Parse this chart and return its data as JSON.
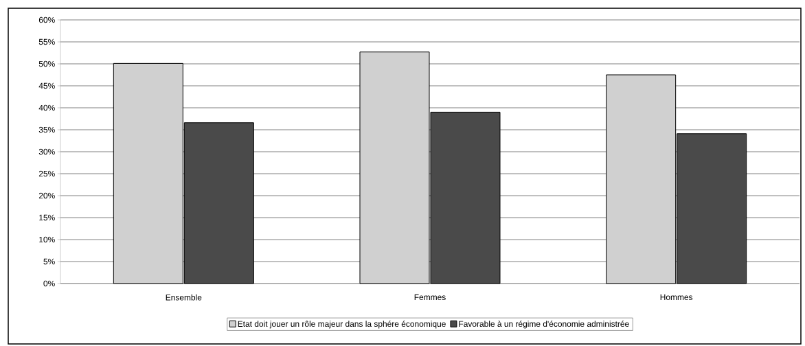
{
  "chart_data": {
    "type": "bar",
    "categories": [
      "Ensemble",
      "Femmes",
      "Hommes"
    ],
    "series": [
      {
        "name": "Etat doit jouer un rôle majeur dans la sphére économique",
        "color": "#d0d0d0",
        "values": [
          50.1,
          52.7,
          47.5
        ]
      },
      {
        "name": "Favorable à un régime d'économie administrée",
        "color": "#4a4a4a",
        "values": [
          36.6,
          39.0,
          34.1
        ]
      }
    ],
    "ylim": [
      0,
      60
    ],
    "yticks": [
      {
        "value": 0,
        "label": "0%"
      },
      {
        "value": 5,
        "label": "5%"
      },
      {
        "value": 10,
        "label": "10%"
      },
      {
        "value": 15,
        "label": "15%"
      },
      {
        "value": 20,
        "label": "20%"
      },
      {
        "value": 25,
        "label": "25%"
      },
      {
        "value": 30,
        "label": "30%"
      },
      {
        "value": 35,
        "label": "35%"
      },
      {
        "value": 40,
        "label": "40%"
      },
      {
        "value": 45,
        "label": "45%"
      },
      {
        "value": 50,
        "label": "50%"
      },
      {
        "value": 55,
        "label": "55%"
      },
      {
        "value": 60,
        "label": "60%"
      }
    ],
    "grid": "y",
    "legend": "bottom"
  }
}
